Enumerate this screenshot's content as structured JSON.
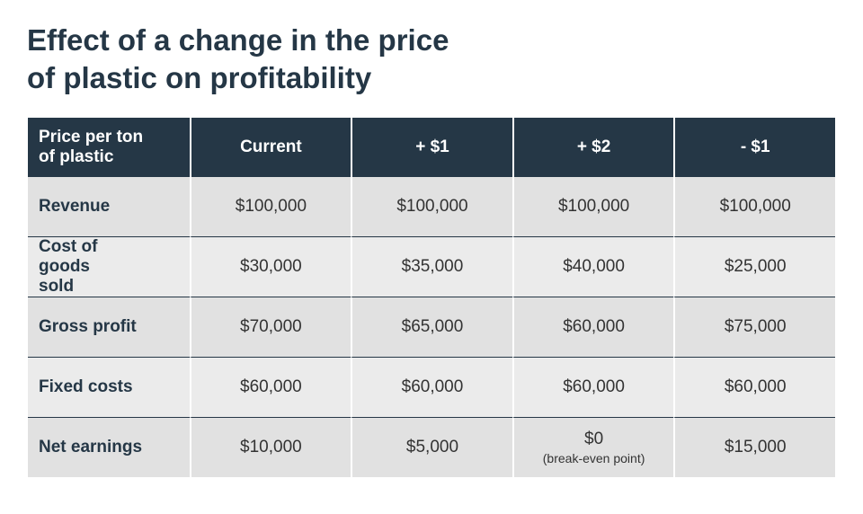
{
  "title": [
    "Effect of a change in the price",
    "of plastic on profitability"
  ],
  "table": {
    "header": [
      "Price per ton of plastic",
      "Current",
      "+ $1",
      "+ $2",
      "- $1"
    ],
    "rows": [
      {
        "label": "Revenue",
        "cells": [
          "$100,000",
          "$100,000",
          "$100,000",
          "$100,000"
        ]
      },
      {
        "label": "Cost of goods sold",
        "cells": [
          "$30,000",
          "$35,000",
          "$40,000",
          "$25,000"
        ]
      },
      {
        "label": "Gross profit",
        "cells": [
          "$70,000",
          "$65,000",
          "$60,000",
          "$75,000"
        ]
      },
      {
        "label": "Fixed costs",
        "cells": [
          "$60,000",
          "$60,000",
          "$60,000",
          "$60,000"
        ]
      },
      {
        "label": "Net earnings",
        "cells": [
          "$10,000",
          "$5,000",
          {
            "value": "$0",
            "note": "(break-even point)"
          },
          "$15,000"
        ]
      }
    ]
  }
}
